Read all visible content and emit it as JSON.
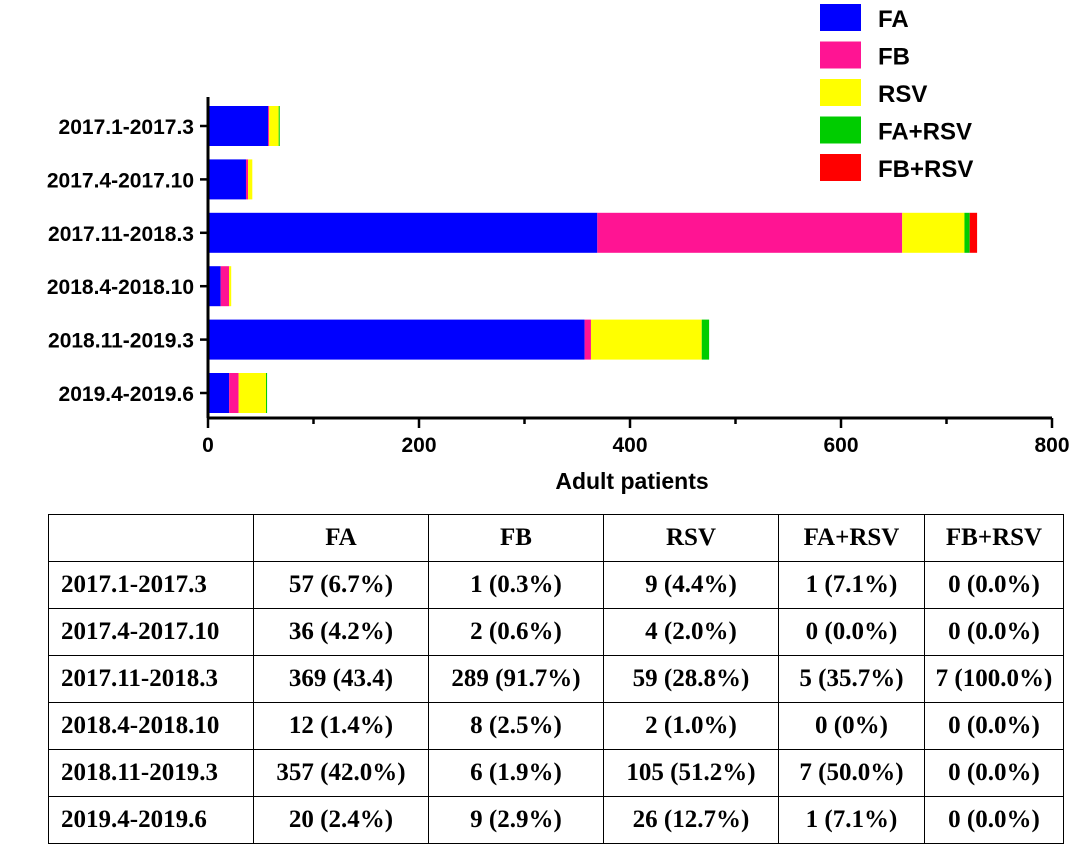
{
  "chart_data": {
    "type": "bar",
    "orientation": "horizontal",
    "stacked": true,
    "categories": [
      "2017.1-2017.3",
      "2017.4-2017.10",
      "2017.11-2018.3",
      "2018.4-2018.10",
      "2018.11-2019.3",
      "2019.4-2019.6"
    ],
    "series": [
      {
        "name": "FA",
        "color": "#0000ff",
        "values": [
          57,
          36,
          369,
          12,
          357,
          20
        ]
      },
      {
        "name": "FB",
        "color": "#ff1493",
        "values": [
          1,
          2,
          289,
          8,
          6,
          9
        ]
      },
      {
        "name": "RSV",
        "color": "#ffff00",
        "values": [
          9,
          4,
          59,
          2,
          105,
          26
        ]
      },
      {
        "name": "FA+RSV",
        "color": "#00cc00",
        "values": [
          1,
          0,
          5,
          0,
          7,
          1
        ]
      },
      {
        "name": "FB+RSV",
        "color": "#ff0000",
        "values": [
          0,
          0,
          7,
          0,
          0,
          0
        ]
      }
    ],
    "xlabel": "Adult patients",
    "ylabel": "",
    "xlim": [
      0,
      800
    ],
    "xticks": [
      "0",
      "200",
      "400",
      "600",
      "800"
    ],
    "legend_position": "top-right",
    "grid": false
  },
  "table": {
    "header": [
      "",
      "FA",
      "FB",
      "RSV",
      "FA+RSV",
      "FB+RSV"
    ],
    "rows": [
      [
        "2017.1-2017.3",
        "57 (6.7%)",
        "1 (0.3%)",
        "9 (4.4%)",
        "1 (7.1%)",
        "0 (0.0%)"
      ],
      [
        "2017.4-2017.10",
        "36 (4.2%)",
        "2 (0.6%)",
        "4 (2.0%)",
        "0 (0.0%)",
        "0 (0.0%)"
      ],
      [
        "2017.11-2018.3",
        "369 (43.4)",
        "289 (91.7%)",
        "59 (28.8%)",
        "5 (35.7%)",
        "7 (100.0%)"
      ],
      [
        "2018.4-2018.10",
        "12 (1.4%)",
        "8 (2.5%)",
        "2 (1.0%)",
        "0 (0%)",
        "0 (0.0%)"
      ],
      [
        "2018.11-2019.3",
        "357 (42.0%)",
        "6 (1.9%)",
        "105 (51.2%)",
        "7 (50.0%)",
        "0 (0.0%)"
      ],
      [
        "2019.4-2019.6",
        "20 (2.4%)",
        "9 (2.9%)",
        "26 (12.7%)",
        "1 (7.1%)",
        "0 (0.0%)"
      ]
    ]
  }
}
